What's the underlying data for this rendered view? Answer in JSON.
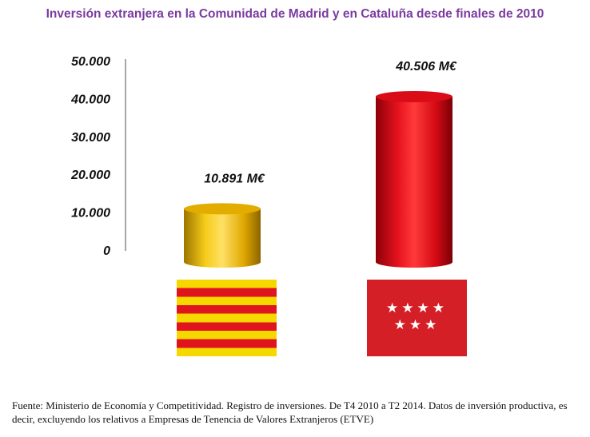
{
  "title": "Inversión extranjera en la Comunidad de Madrid y en Cataluña desde finales de 2010",
  "chart_data": {
    "type": "bar",
    "categories": [
      "Cataluña",
      "Comunidad de Madrid"
    ],
    "values": [
      10891,
      40506
    ],
    "data_labels": [
      "10.891 M€",
      "40.506 M€"
    ],
    "ylim": [
      0,
      50000
    ],
    "yticks": [
      0,
      10000,
      20000,
      30000,
      40000,
      50000
    ],
    "ytick_labels": [
      "0",
      "10.000",
      "20.000",
      "30.000",
      "40.000",
      "50.000"
    ],
    "colors": [
      "#f2b800",
      "#e30613"
    ],
    "grid": false
  },
  "flags": {
    "catalonia": {
      "colors": [
        "#f5d800",
        "#e0141e"
      ]
    },
    "madrid": {
      "color": "#d41f26",
      "stars_row1": "★★★★",
      "stars_row2": "★★★"
    }
  },
  "source": "Fuente: Ministerio de Economía y Competitividad. Registro de inversiones. De T4 2010 a T2 2014. Datos de inversión productiva, es decir, excluyendo los relativos a Empresas de Tenencia de Valores Extranjeros (ETVE)"
}
